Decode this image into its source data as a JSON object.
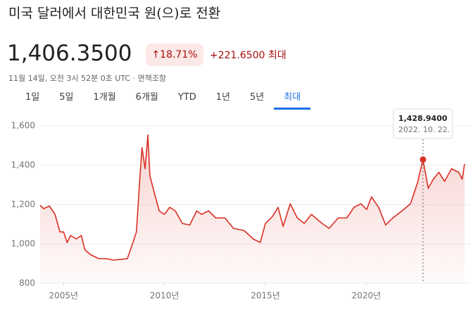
{
  "header": {
    "title": "미국 달러에서 대한민국 원(으)로 전환",
    "price": "1,406.3500",
    "change_percent": "18.71%",
    "change": "+221.6500",
    "period": "최대",
    "timestamp": "11월 14일, 오전 3시 52분 0초 UTC",
    "disclaimer": "면책조항"
  },
  "tabs": {
    "items": [
      "1일",
      "5일",
      "1개월",
      "6개월",
      "YTD",
      "1년",
      "5년",
      "최대"
    ],
    "selected": 7
  },
  "chart_data": {
    "type": "line",
    "color": "#d93025",
    "x": [
      2003.84,
      2004.02,
      2004.3,
      2004.58,
      2004.82,
      2005.0,
      2005.18,
      2005.35,
      2005.63,
      2005.88,
      2006.05,
      2006.33,
      2006.75,
      2007.11,
      2007.46,
      2007.81,
      2008.16,
      2008.44,
      2008.61,
      2008.79,
      2008.89,
      2009.04,
      2009.18,
      2009.28,
      2009.46,
      2009.74,
      2010.0,
      2010.26,
      2010.54,
      2010.89,
      2011.25,
      2011.6,
      2011.84,
      2012.19,
      2012.54,
      2013.0,
      2013.42,
      2013.95,
      2014.4,
      2014.75,
      2015.0,
      2015.35,
      2015.63,
      2015.88,
      2016.23,
      2016.58,
      2016.93,
      2017.28,
      2017.81,
      2018.16,
      2018.61,
      2019.04,
      2019.39,
      2019.74,
      2020.02,
      2020.26,
      2020.61,
      2020.96,
      2021.32,
      2021.77,
      2022.19,
      2022.54,
      2022.81,
      2023.07,
      2023.32,
      2023.6,
      2023.88,
      2024.23,
      2024.58,
      2024.75,
      2024.87
    ],
    "values": [
      1196,
      1179,
      1193,
      1150,
      1061,
      1061,
      1007,
      1043,
      1025,
      1043,
      971,
      946,
      925,
      925,
      918,
      921,
      925,
      1007,
      1061,
      1346,
      1489,
      1382,
      1554,
      1346,
      1275,
      1168,
      1150,
      1186,
      1168,
      1104,
      1096,
      1168,
      1150,
      1168,
      1132,
      1132,
      1079,
      1068,
      1025,
      1007,
      1104,
      1139,
      1186,
      1089,
      1204,
      1132,
      1104,
      1150,
      1104,
      1079,
      1132,
      1132,
      1186,
      1204,
      1175,
      1239,
      1186,
      1096,
      1132,
      1168,
      1204,
      1311,
      1428.94,
      1282,
      1329,
      1364,
      1318,
      1382,
      1364,
      1329,
      1406.35
    ],
    "xlim": [
      2003.84,
      2024.87
    ],
    "ylim": [
      800,
      1600
    ],
    "xticks": [
      {
        "value": 2005,
        "label": "2005년"
      },
      {
        "value": 2010,
        "label": "2010년"
      },
      {
        "value": 2015,
        "label": "2015년"
      },
      {
        "value": 2020,
        "label": "2020년"
      }
    ],
    "yticks": [
      {
        "value": 800,
        "label": "800"
      },
      {
        "value": 1000,
        "label": "1,000"
      },
      {
        "value": 1200,
        "label": "1,200"
      },
      {
        "value": 1400,
        "label": "1,400"
      },
      {
        "value": 1600,
        "label": "1,600"
      }
    ],
    "grid": true,
    "tooltip": {
      "x": 2022.81,
      "value": 1428.94,
      "label": "1,428.9400",
      "date": "2022. 10. 22."
    }
  }
}
